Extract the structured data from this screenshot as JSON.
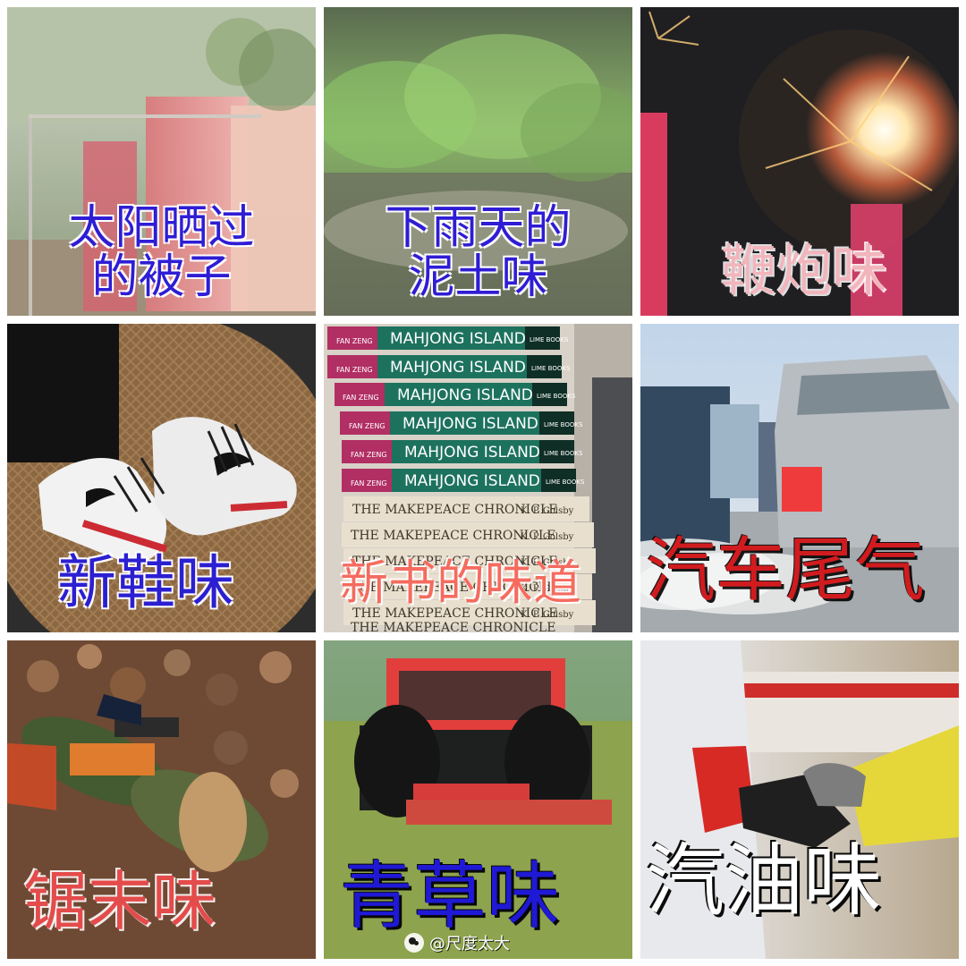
{
  "collage": {
    "tiles": [
      {
        "label": "太阳晒过\n的被子"
      },
      {
        "label": "下雨天的\n泥土味"
      },
      {
        "label": "鞭炮味"
      },
      {
        "label": "新鞋味"
      },
      {
        "label": "新书的味道",
        "book_spines": [
          "MAHJONG ISLAND",
          "MAHJONG ISLAND",
          "MAHJONG ISLAND",
          "MAHJONG ISLAND",
          "MAHJONG ISLAND",
          "MAHJONG ISLAND",
          "THE MAKEPEACE CHRONICLE",
          "THE MAKEPEACE CHRONICLE",
          "THE MAKEPEACE CHRONICLE",
          "THE MAKEPEACE CHRONICLE",
          "THE MAKEPEACE CHRONICLE",
          "THE MAKEPEACE CHRONICLE"
        ],
        "author_top": "FAN ZENG",
        "author_bottom": "K. P. Golsby",
        "publisher": "LIME BOOKS"
      },
      {
        "label": "汽车尾气"
      },
      {
        "label": "锯末味"
      },
      {
        "label": "青草味"
      },
      {
        "label": "汽油味"
      }
    ],
    "watermark": "@尺度太大"
  }
}
